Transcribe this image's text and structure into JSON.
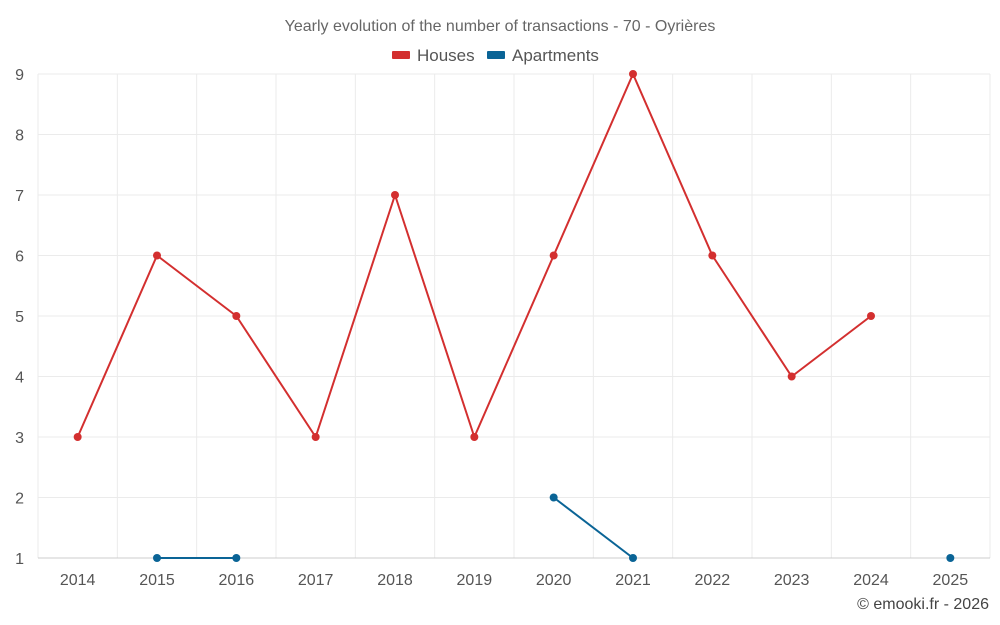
{
  "chart_data": {
    "type": "line",
    "title": "Yearly evolution of the number of transactions - 70 - Oyrières",
    "categories": [
      "2014",
      "2015",
      "2016",
      "2017",
      "2018",
      "2019",
      "2020",
      "2021",
      "2022",
      "2023",
      "2024",
      "2025"
    ],
    "ylim": [
      1,
      9
    ],
    "yticks": [
      1,
      2,
      3,
      4,
      5,
      6,
      7,
      8,
      9
    ],
    "grid": true,
    "legend_position": "top-center",
    "series": [
      {
        "name": "Houses",
        "color": "#d32f2f",
        "values": [
          3,
          6,
          5,
          3,
          7,
          3,
          6,
          9,
          6,
          4,
          5,
          null
        ]
      },
      {
        "name": "Apartments",
        "color": "#0a6496",
        "values": [
          null,
          1,
          1,
          null,
          null,
          null,
          2,
          1,
          null,
          null,
          null,
          1
        ]
      }
    ],
    "credit": "© emooki.fr - 2026"
  }
}
